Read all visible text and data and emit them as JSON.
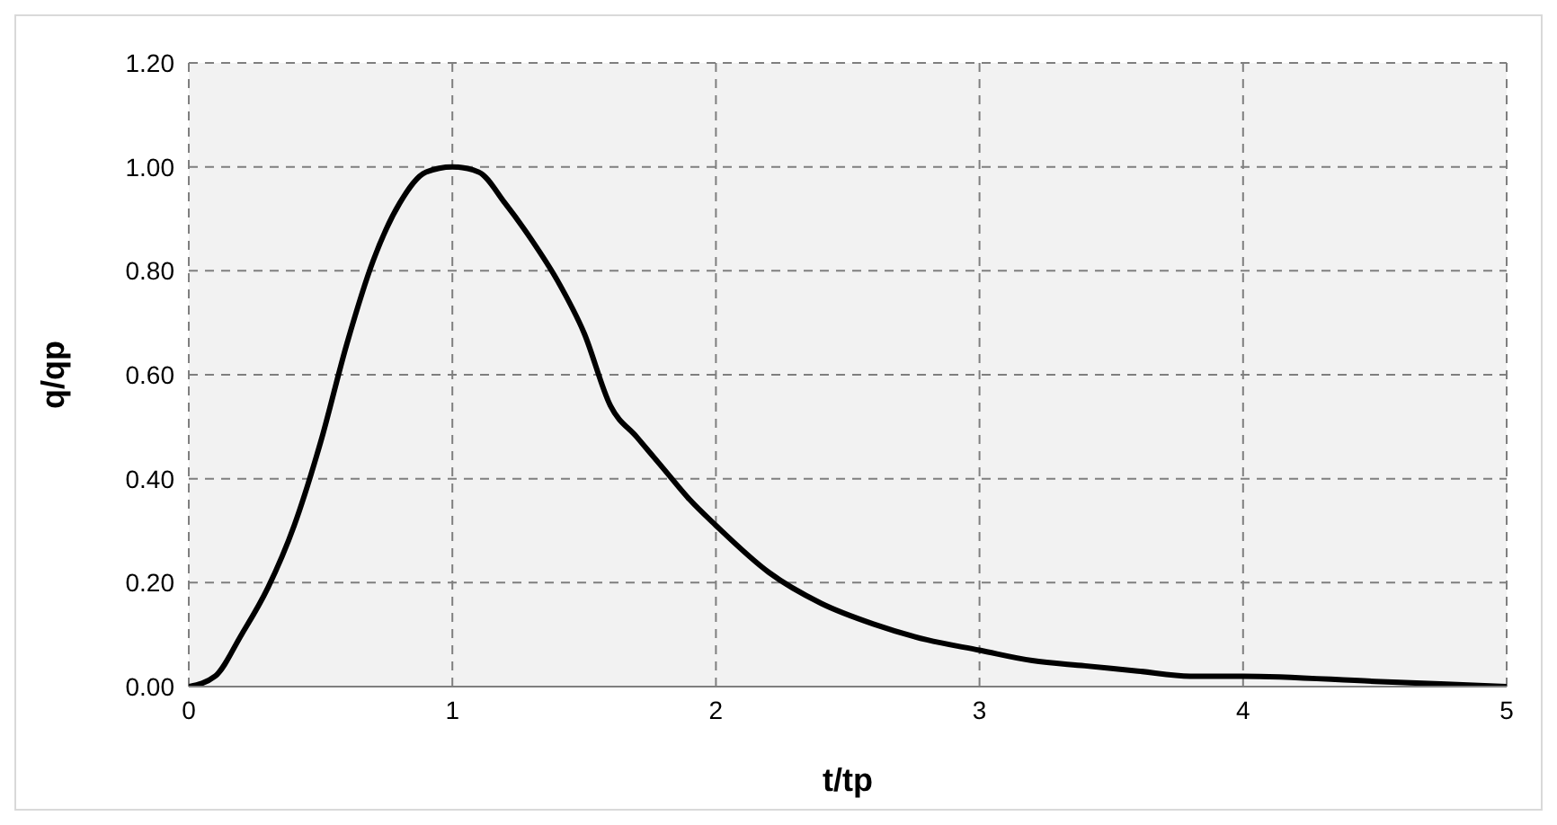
{
  "chart_data": {
    "type": "line",
    "xlabel": "t/tp",
    "ylabel": "q/qp",
    "x": [
      0,
      0.1,
      0.2,
      0.3,
      0.4,
      0.5,
      0.6,
      0.7,
      0.8,
      0.9,
      1.0,
      1.1,
      1.2,
      1.3,
      1.4,
      1.5,
      1.6,
      1.7,
      1.8,
      1.9,
      2.0,
      2.2,
      2.4,
      2.6,
      2.8,
      3.0,
      3.2,
      3.4,
      3.6,
      3.8,
      4.0,
      4.5,
      5.0
    ],
    "series": [
      {
        "color": "#000000",
        "values": [
          0,
          0.02,
          0.1,
          0.19,
          0.31,
          0.47,
          0.66,
          0.82,
          0.93,
          0.99,
          1.0,
          0.99,
          0.93,
          0.86,
          0.78,
          0.68,
          0.54,
          0.48,
          0.42,
          0.36,
          0.31,
          0.22,
          0.16,
          0.12,
          0.09,
          0.07,
          0.05,
          0.04,
          0.03,
          0.02,
          0.02,
          0.01,
          0.0
        ]
      }
    ],
    "xlim": [
      0,
      5
    ],
    "xticks": [
      0,
      1,
      2,
      3,
      4,
      5
    ],
    "ylim": [
      0,
      1.2
    ],
    "yticks": [
      {
        "value": 0,
        "label": "0.00"
      },
      {
        "value": 0.2,
        "label": "0.20"
      },
      {
        "value": 0.4,
        "label": "0.40"
      },
      {
        "value": 0.6,
        "label": "0.60"
      },
      {
        "value": 0.8,
        "label": "0.80"
      },
      {
        "value": 1.0,
        "label": "1.00"
      },
      {
        "value": 1.2,
        "label": "1.20"
      }
    ],
    "grid": true,
    "legend": false,
    "marker": "none",
    "line_style": "solid"
  }
}
